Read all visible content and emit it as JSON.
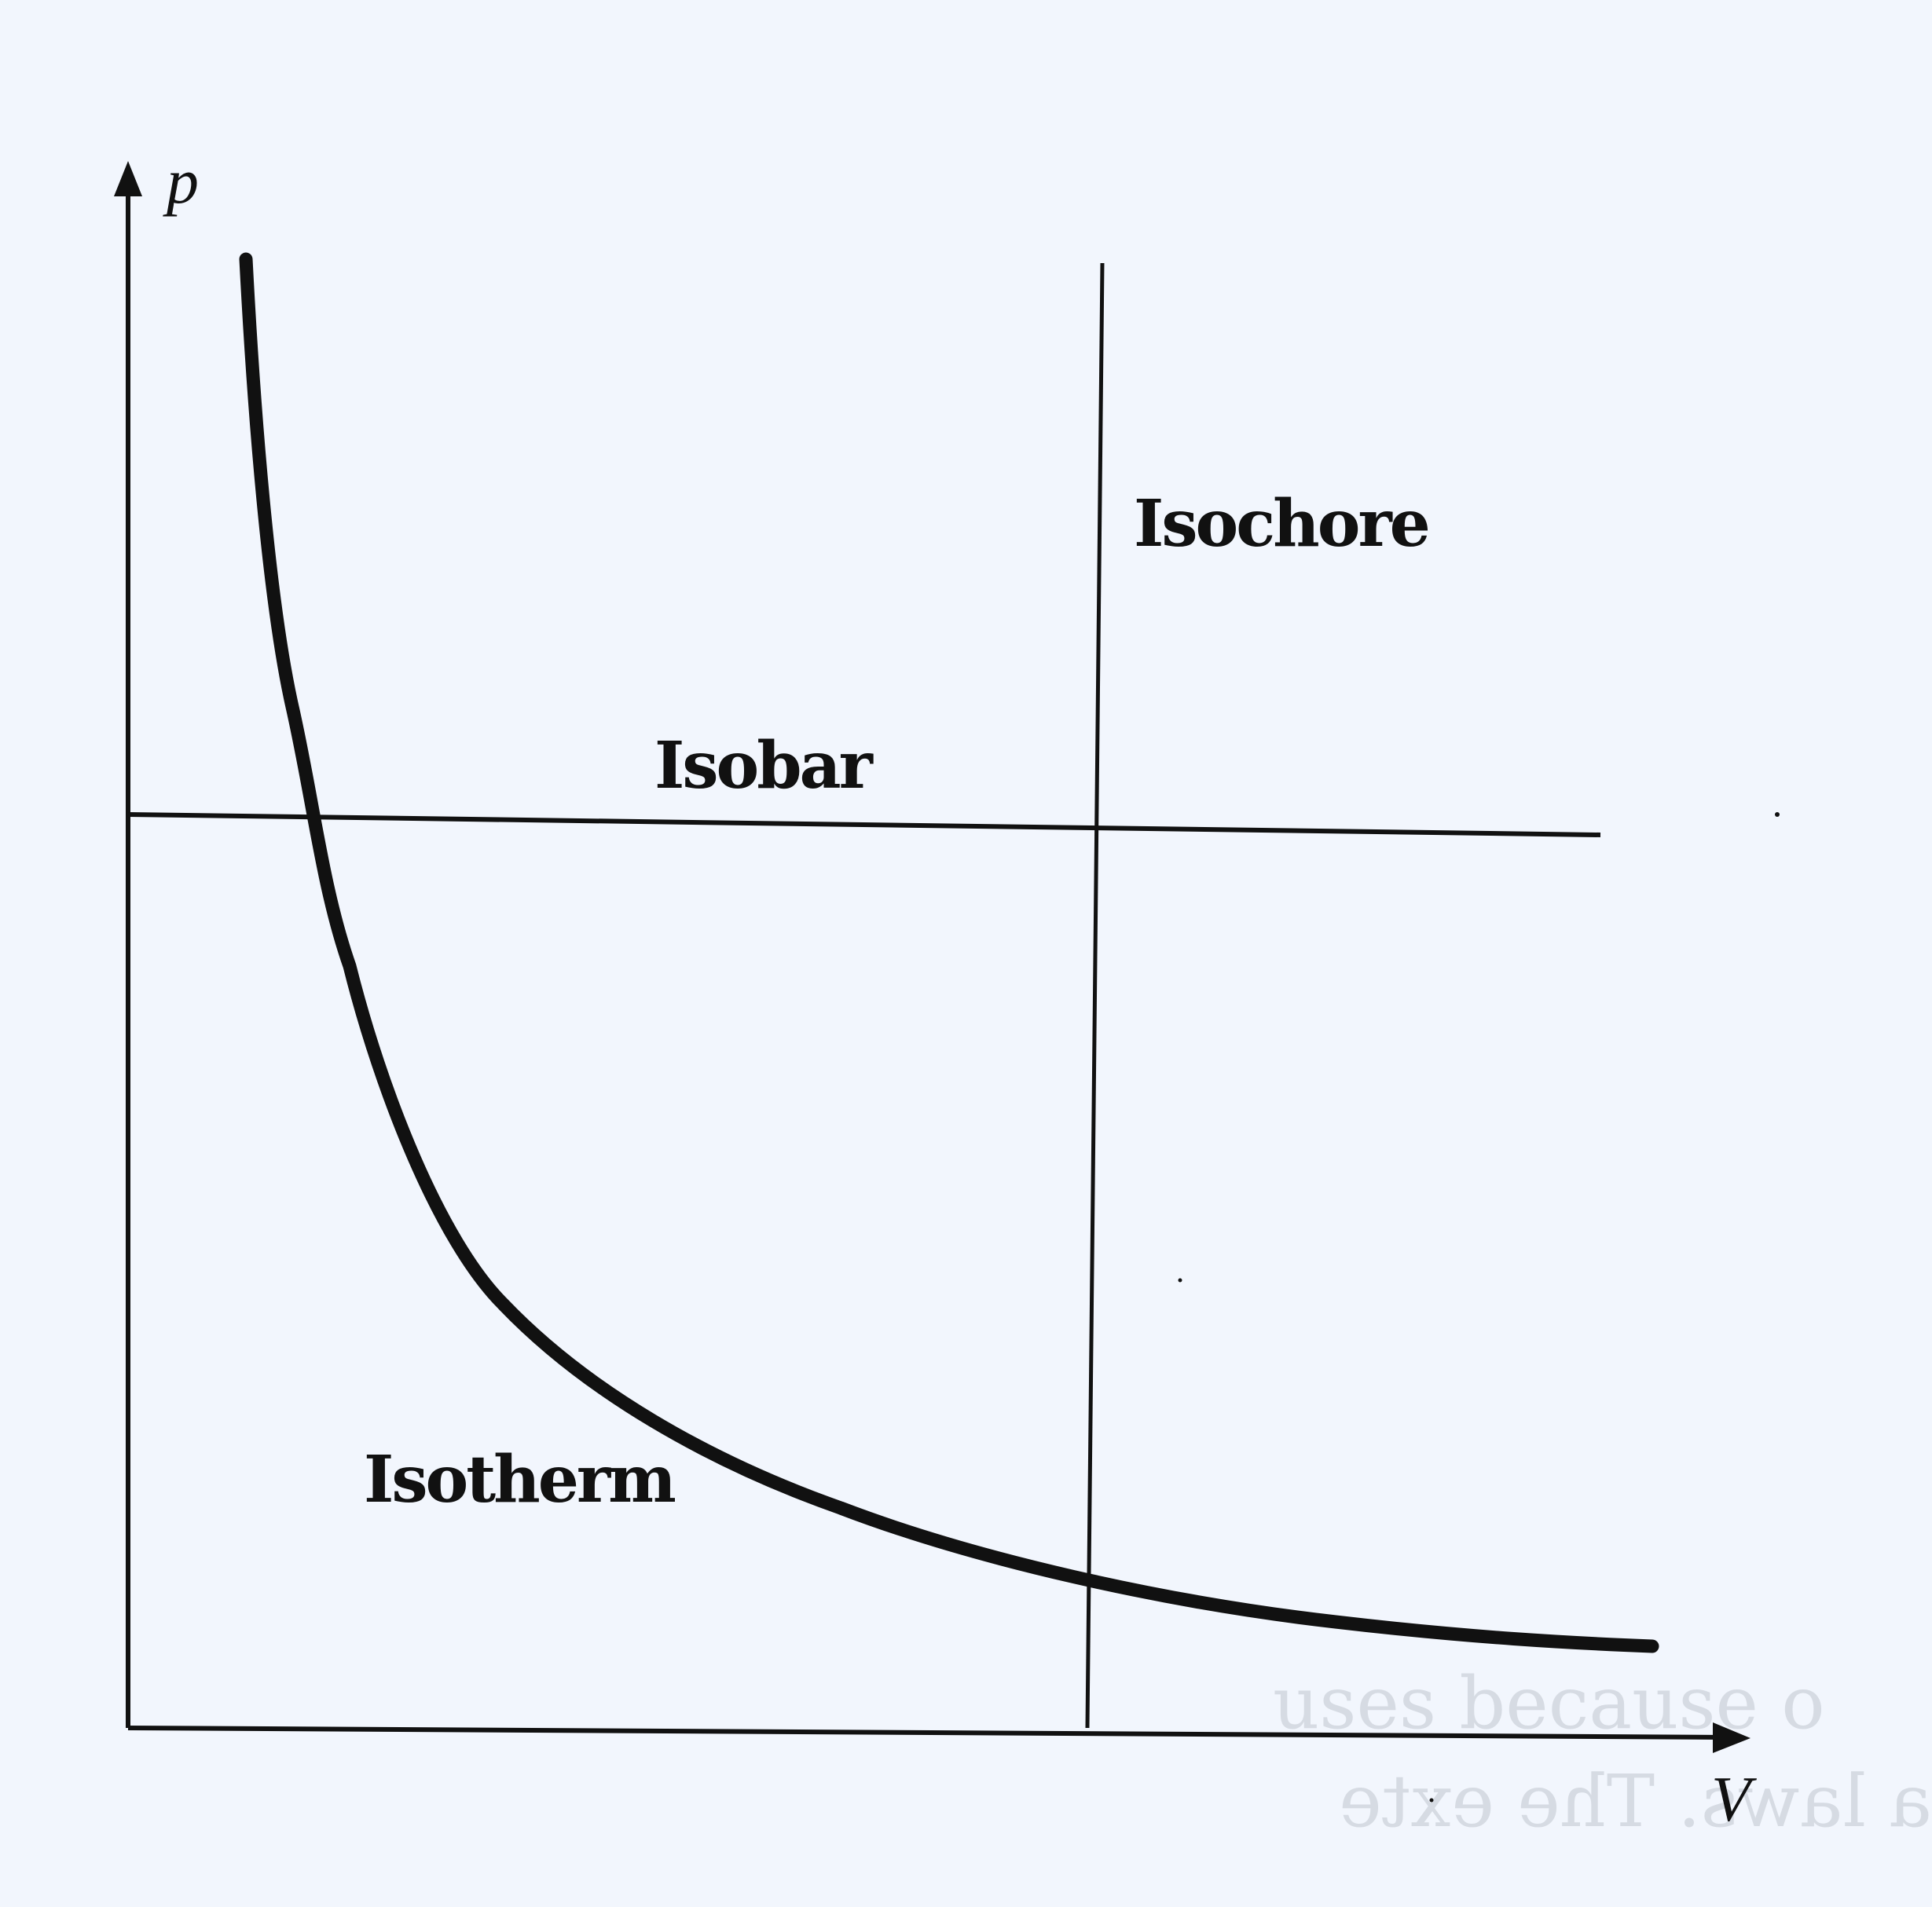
{
  "axes": {
    "y_label": "p",
    "x_label": "V"
  },
  "curves": {
    "isochore": "Isochore",
    "isobar": "Isobar",
    "isotherm": "Isotherm"
  },
  "colors": {
    "background": "#f2f6fd",
    "ink": "#111111",
    "bleed_through": "#d6dbe3"
  },
  "bleed_through_text": [
    "uses because o",
    "a laws. The exte"
  ]
}
